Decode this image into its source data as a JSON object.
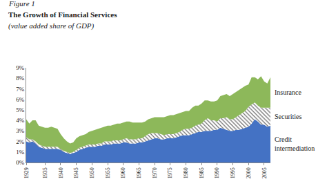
{
  "chart_data": {
    "type": "area",
    "stacked": true,
    "grid": false,
    "caption": "Figure 1",
    "title": "The Growth of Financial Services",
    "subtitle": "(value added share of GDP)",
    "x": [
      1929,
      1930,
      1931,
      1932,
      1933,
      1934,
      1935,
      1936,
      1937,
      1938,
      1939,
      1940,
      1941,
      1942,
      1943,
      1944,
      1945,
      1946,
      1947,
      1948,
      1949,
      1950,
      1951,
      1952,
      1953,
      1954,
      1955,
      1956,
      1957,
      1958,
      1959,
      1960,
      1961,
      1962,
      1963,
      1964,
      1965,
      1966,
      1967,
      1968,
      1969,
      1970,
      1971,
      1972,
      1973,
      1974,
      1975,
      1976,
      1977,
      1978,
      1979,
      1980,
      1981,
      1982,
      1983,
      1984,
      1985,
      1986,
      1987,
      1988,
      1989,
      1990,
      1991,
      1992,
      1993,
      1994,
      1995,
      1996,
      1997,
      1998,
      1999,
      2000,
      2001,
      2002,
      2003,
      2004,
      2005,
      2006,
      2007
    ],
    "series": [
      {
        "name": "Credit intermediation",
        "color": "#4472c4",
        "values": [
          2.0,
          1.9,
          2.0,
          1.8,
          1.5,
          1.4,
          1.3,
          1.3,
          1.3,
          1.3,
          1.3,
          1.2,
          1.0,
          0.9,
          0.8,
          0.9,
          1.0,
          1.2,
          1.3,
          1.4,
          1.5,
          1.5,
          1.5,
          1.6,
          1.6,
          1.7,
          1.7,
          1.7,
          1.8,
          1.8,
          1.8,
          1.9,
          1.9,
          1.8,
          1.8,
          1.8,
          1.9,
          1.9,
          2.0,
          2.1,
          2.2,
          2.3,
          2.3,
          2.2,
          2.2,
          2.3,
          2.3,
          2.3,
          2.4,
          2.5,
          2.6,
          2.6,
          2.6,
          2.7,
          2.8,
          2.9,
          2.9,
          3.0,
          3.0,
          3.0,
          3.1,
          3.1,
          3.3,
          3.2,
          3.1,
          3.0,
          3.0,
          3.1,
          3.1,
          3.2,
          3.3,
          3.4,
          3.7,
          4.1,
          3.9,
          3.6,
          3.6,
          3.4,
          3.5
        ]
      },
      {
        "name": "Securities",
        "color": "#6e6e6e",
        "marker": "hatch",
        "values": [
          0.4,
          0.3,
          0.2,
          0.2,
          0.2,
          0.2,
          0.2,
          0.2,
          0.2,
          0.2,
          0.2,
          0.1,
          0.1,
          0.1,
          0.1,
          0.1,
          0.2,
          0.2,
          0.2,
          0.2,
          0.2,
          0.2,
          0.2,
          0.2,
          0.2,
          0.3,
          0.3,
          0.3,
          0.3,
          0.3,
          0.3,
          0.3,
          0.4,
          0.4,
          0.4,
          0.4,
          0.4,
          0.4,
          0.5,
          0.6,
          0.6,
          0.5,
          0.5,
          0.5,
          0.4,
          0.4,
          0.4,
          0.4,
          0.4,
          0.4,
          0.5,
          0.6,
          0.6,
          0.6,
          0.7,
          0.7,
          0.8,
          1.0,
          1.2,
          1.0,
          0.9,
          0.8,
          0.9,
          1.0,
          1.2,
          1.1,
          1.1,
          1.2,
          1.4,
          1.5,
          1.6,
          1.9,
          1.8,
          1.6,
          1.5,
          1.6,
          1.6,
          1.8,
          1.7
        ]
      },
      {
        "name": "Insurance",
        "color": "#8db85a",
        "values": [
          1.7,
          1.5,
          1.8,
          2.0,
          1.8,
          1.8,
          1.8,
          1.8,
          1.9,
          1.8,
          1.7,
          1.4,
          1.2,
          1.0,
          0.9,
          0.9,
          1.1,
          1.1,
          1.1,
          1.1,
          1.2,
          1.3,
          1.4,
          1.4,
          1.5,
          1.4,
          1.5,
          1.5,
          1.5,
          1.6,
          1.6,
          1.6,
          1.6,
          1.7,
          1.6,
          1.6,
          1.5,
          1.5,
          1.4,
          1.4,
          1.4,
          1.5,
          1.5,
          1.6,
          1.7,
          1.7,
          1.8,
          1.8,
          1.8,
          1.8,
          1.7,
          1.7,
          1.7,
          1.9,
          1.9,
          1.8,
          1.9,
          1.9,
          1.7,
          1.8,
          1.8,
          2.0,
          2.1,
          2.2,
          2.2,
          2.2,
          2.4,
          2.4,
          2.4,
          2.4,
          2.4,
          2.1,
          2.6,
          2.4,
          2.5,
          3.0,
          2.5,
          2.3,
          2.9
        ]
      }
    ],
    "xlim": [
      1929,
      2007
    ],
    "xticks": [
      1929,
      1935,
      1940,
      1945,
      1950,
      1955,
      1960,
      1965,
      1970,
      1975,
      1980,
      1985,
      1990,
      1995,
      2000,
      2005
    ],
    "ylim": [
      0,
      9
    ],
    "yticks": [
      {
        "value": 0,
        "label": "0%"
      },
      {
        "value": 1,
        "label": "1%"
      },
      {
        "value": 2,
        "label": "2%"
      },
      {
        "value": 3,
        "label": "3%"
      },
      {
        "value": 4,
        "label": "4%"
      },
      {
        "value": 5,
        "label": "5%"
      },
      {
        "value": 6,
        "label": "6%"
      },
      {
        "value": 7,
        "label": "7%"
      },
      {
        "value": 8,
        "label": "8%"
      },
      {
        "value": 9,
        "label": "9%"
      }
    ]
  }
}
